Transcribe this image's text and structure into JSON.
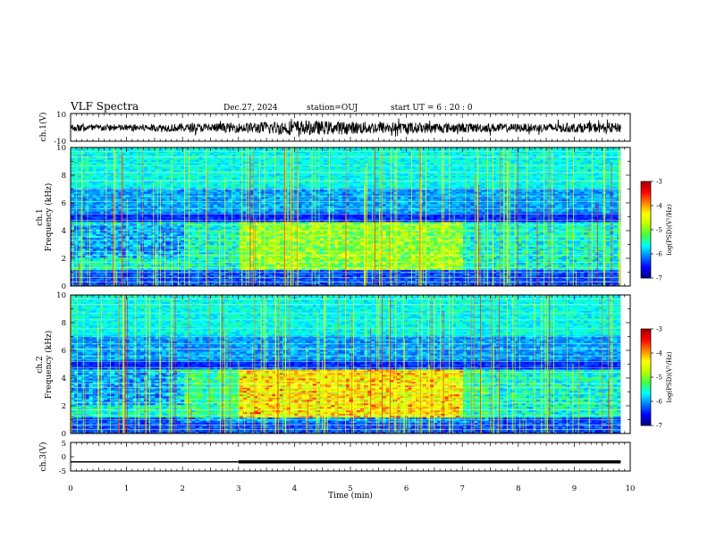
{
  "header": {
    "title": "VLF Spectra",
    "date": "Dec.27, 2024",
    "station": "station=OUJ",
    "start": "start  UT =   6 : 20 : 0"
  },
  "chart_data": [
    {
      "type": "line",
      "name": "ch1-waveform",
      "ylabel": "ch.1(V)",
      "ylim": [
        -10,
        10
      ],
      "y_ticks": [
        "10",
        "-10"
      ],
      "x_range_min": [
        0,
        9.83
      ],
      "amplitude_envelope_V": {
        "x": [
          0,
          1,
          2,
          3,
          3.5,
          4,
          4.5,
          5,
          5.5,
          6,
          7,
          8,
          9,
          9.83
        ],
        "y": [
          2.5,
          2.5,
          3,
          3.5,
          4.5,
          5.5,
          5,
          4.5,
          4.5,
          4,
          3.5,
          3,
          3.5,
          3.5
        ]
      }
    },
    {
      "type": "heatmap",
      "name": "ch1-spectrogram",
      "ylabel": "ch.1\nFrequency (kHz)",
      "ylim": [
        0,
        10
      ],
      "y_ticks": [
        "0",
        "2",
        "4",
        "6",
        "8",
        "10"
      ],
      "x_range_min": [
        0,
        9.83
      ],
      "colorbar": {
        "label": "log(PSD)(V²/Hz)",
        "range": [
          -7,
          -3
        ],
        "ticks": [
          "-3",
          "-4",
          "-5",
          "-6",
          "-7"
        ]
      }
    },
    {
      "type": "heatmap",
      "name": "ch2-spectrogram",
      "ylabel": "ch.2\nFrequency (kHz)",
      "ylim": [
        0,
        10
      ],
      "y_ticks": [
        "0",
        "2",
        "4",
        "6",
        "8",
        "10"
      ],
      "x_range_min": [
        0,
        9.83
      ],
      "colorbar": {
        "label": "log(PSD)(V²/Hz)",
        "range": [
          -7,
          -3
        ],
        "ticks": [
          "-3",
          "-4",
          "-5",
          "-6",
          "-7"
        ]
      }
    },
    {
      "type": "line",
      "name": "ch3-trace",
      "ylabel": "ch.3(V)",
      "ylim": [
        -5,
        5
      ],
      "y_ticks": [
        "5",
        "0",
        "-5"
      ],
      "x_range_min": [
        0,
        9.83
      ],
      "level_V": -1.8,
      "thicker_after_min": 3.0
    }
  ],
  "x_axis": {
    "xlabel": "Time  (min)",
    "xlim": [
      0,
      10
    ],
    "ticks": [
      "0",
      "1",
      "2",
      "3",
      "4",
      "5",
      "6",
      "7",
      "8",
      "9",
      "10"
    ]
  },
  "colors": {
    "background": "#ffffff",
    "axis": "#000000",
    "colormap": [
      "#000080",
      "#0000ff",
      "#0080ff",
      "#00ffff",
      "#40ff40",
      "#c0ff00",
      "#ffff00",
      "#ff8000",
      "#ff0000",
      "#a00000"
    ]
  }
}
